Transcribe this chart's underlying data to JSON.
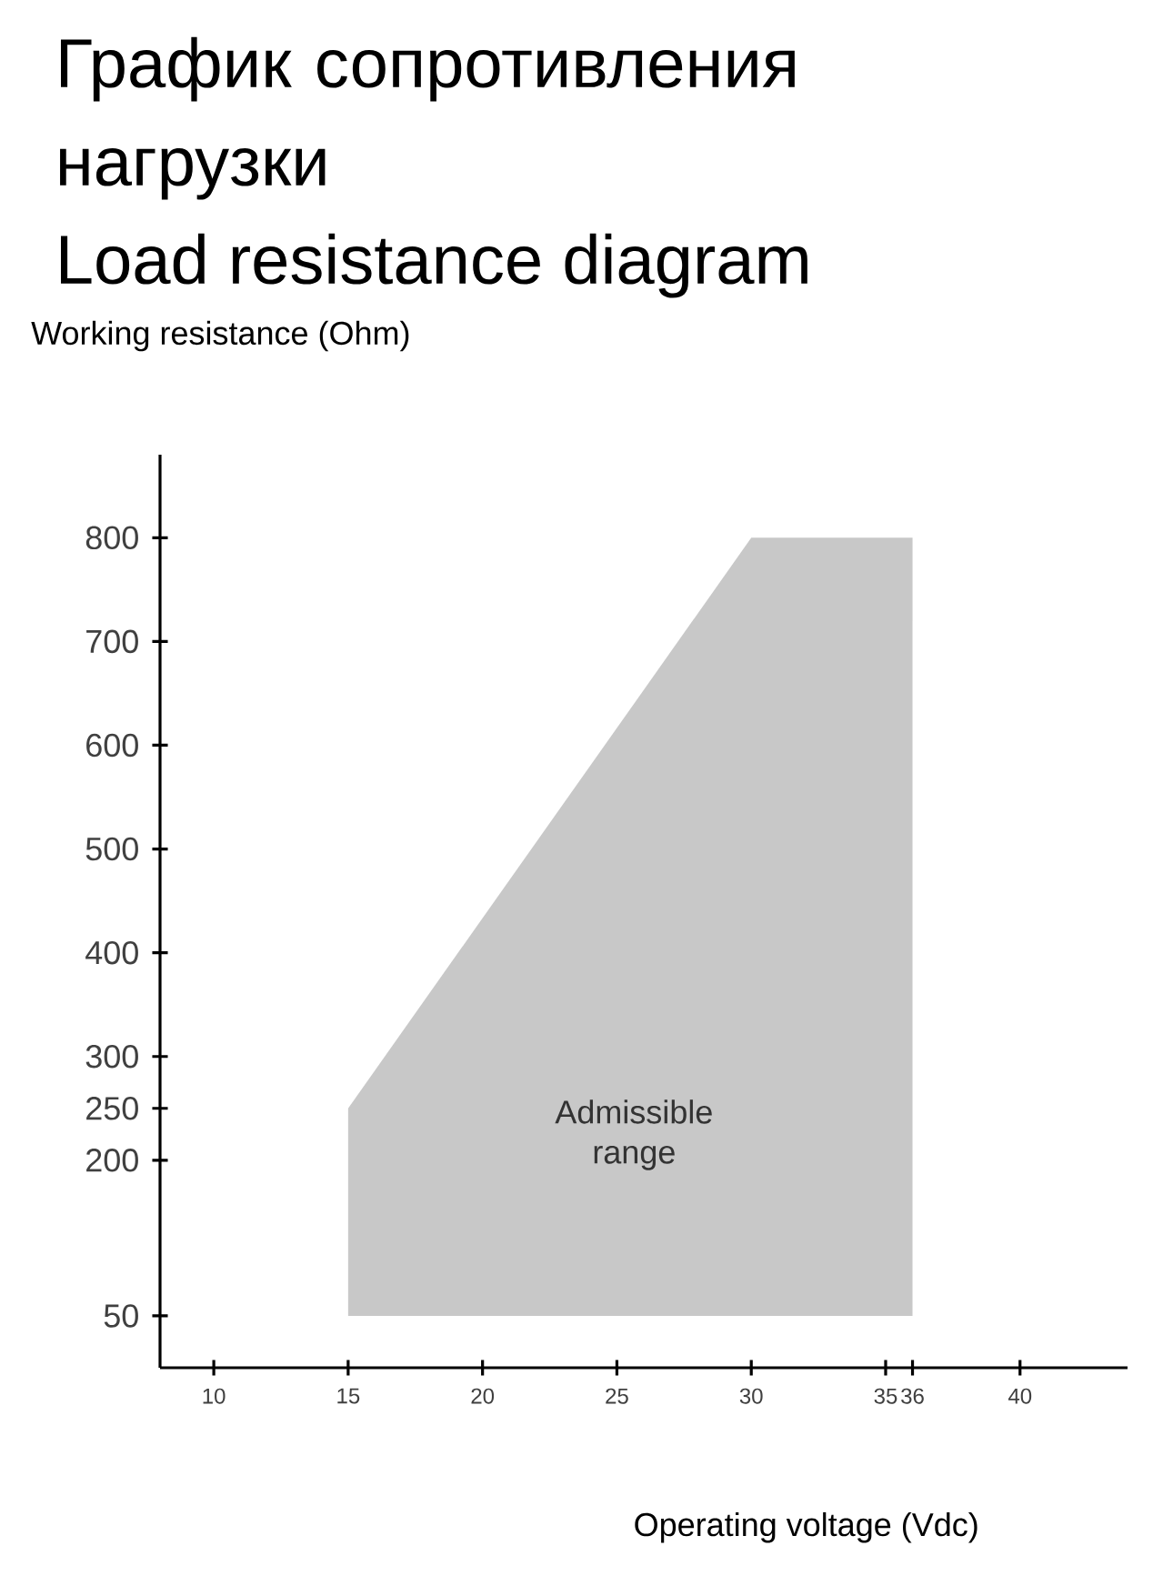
{
  "chart_data": {
    "type": "area",
    "title": "График сопротивления нагрузки",
    "subtitle": "Load resistance diagram",
    "xlabel": "Operating voltage (Vdc)",
    "ylabel": "Working resistance (Ohm)",
    "xlim": [
      8,
      44
    ],
    "ylim": [
      0,
      880
    ],
    "xticks": [
      10,
      15,
      20,
      25,
      30,
      35,
      36,
      40
    ],
    "yticks": [
      50,
      200,
      250,
      300,
      400,
      500,
      600,
      700,
      800
    ],
    "series": [
      {
        "x": [
          15,
          15,
          30,
          36,
          36
        ],
        "values": [
          50,
          250,
          800,
          800,
          50
        ],
        "color": "#c8c8c8"
      }
    ],
    "annotations": [
      "Admissible range"
    ]
  }
}
